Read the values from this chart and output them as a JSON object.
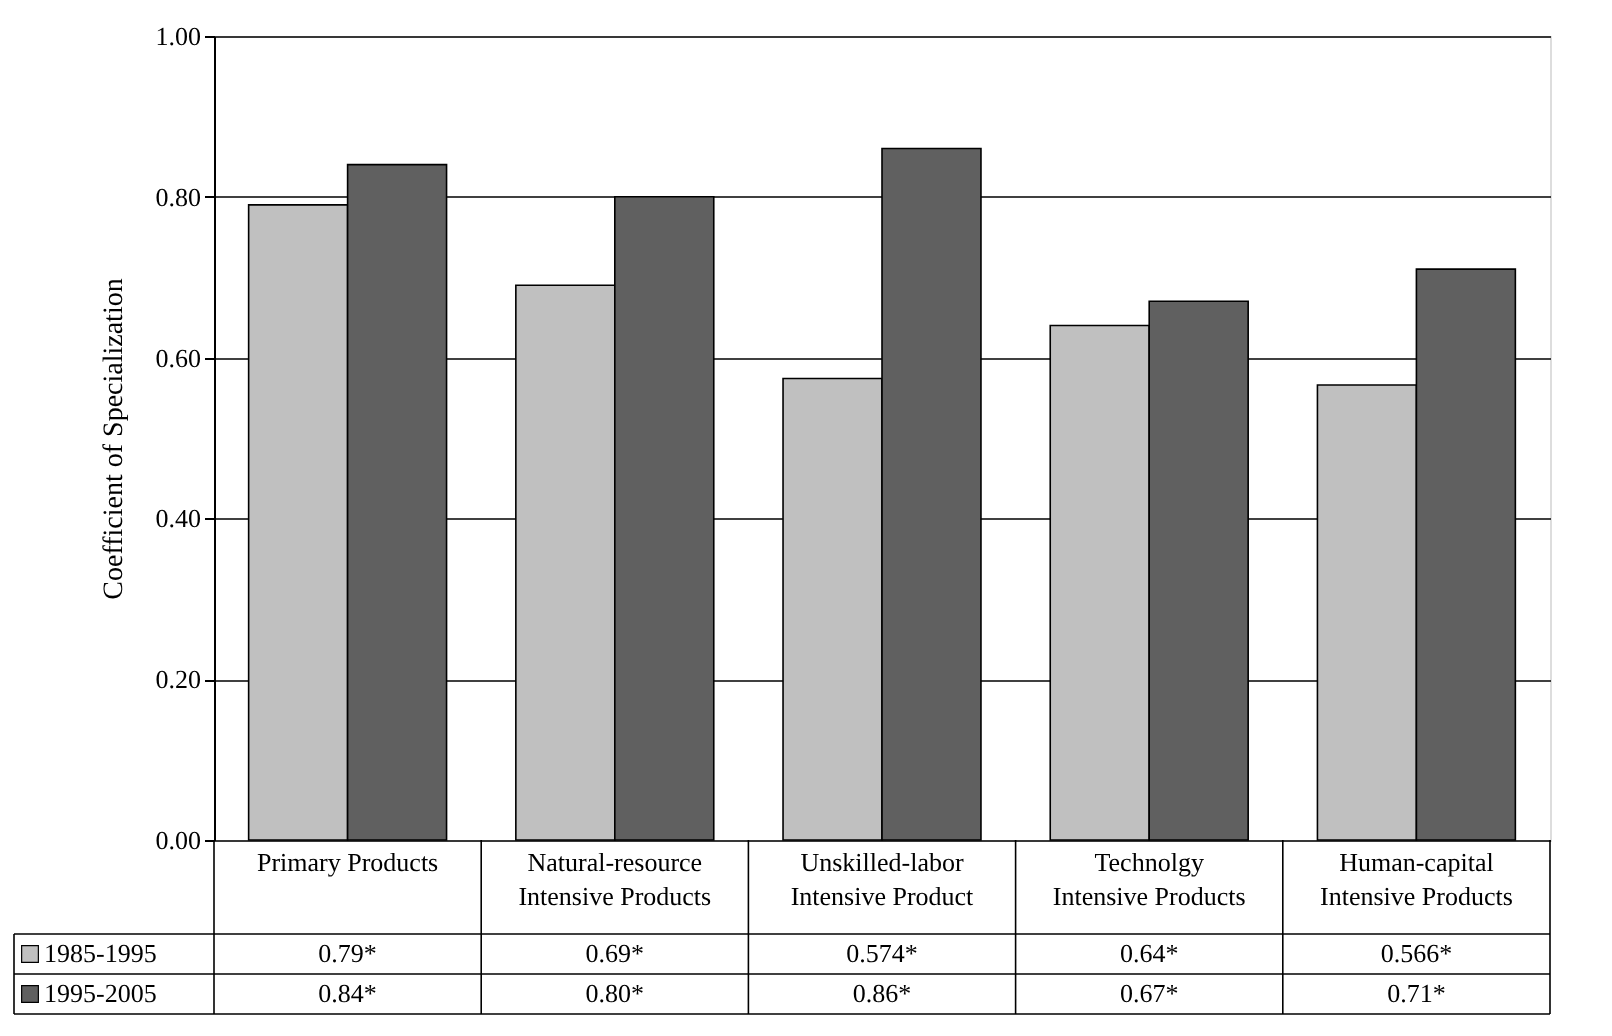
{
  "chart_data": {
    "type": "bar",
    "ylabel": "Coefficient of Specialization",
    "categories": [
      "Primary Products",
      "Natural-resource Intensive Products",
      "Unskilled-labor Intensive Product",
      "Technolgy Intensive Products",
      "Human-capital Intensive Products"
    ],
    "series": [
      {
        "name": "1985-1995",
        "color": "#c0c0c0",
        "values": [
          0.79,
          0.69,
          0.574,
          0.64,
          0.566
        ],
        "value_labels": [
          "0.79*",
          "0.69*",
          "0.574*",
          "0.64*",
          "0.566*"
        ]
      },
      {
        "name": "1995-2005",
        "color": "#606060",
        "values": [
          0.84,
          0.8,
          0.86,
          0.67,
          0.71
        ],
        "value_labels": [
          "0.84*",
          "0.80*",
          "0.86*",
          "0.67*",
          "0.71*"
        ]
      }
    ],
    "ylim": [
      0,
      1
    ],
    "yticks": [
      {
        "value": 0,
        "label": "0.00"
      },
      {
        "value": 0.2,
        "label": "0.20"
      },
      {
        "value": 0.4,
        "label": "0.40"
      },
      {
        "value": 0.6,
        "label": "0.60"
      },
      {
        "value": 0.8,
        "label": "0.80"
      },
      {
        "value": 1,
        "label": "1.00"
      }
    ],
    "grid": "y",
    "legend": "bottom left"
  }
}
